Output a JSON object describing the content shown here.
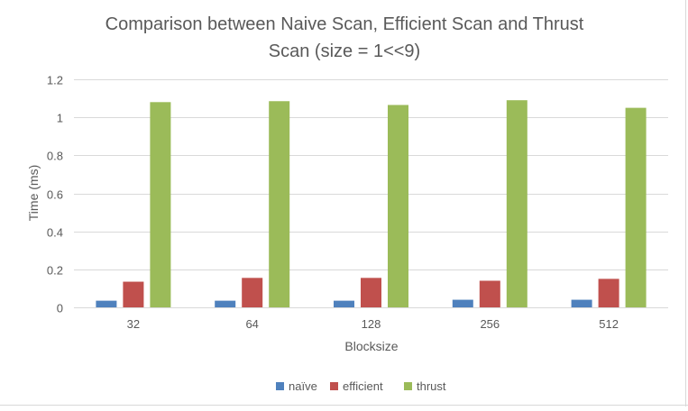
{
  "chart_data": {
    "type": "bar",
    "title_line1": "Comparison between Naive Scan, Efficient Scan and Thrust",
    "title_line2": "Scan (size = 1<<9)",
    "xlabel": "Blocksize",
    "ylabel": "Time (ms)",
    "categories": [
      "32",
      "64",
      "128",
      "256",
      "512"
    ],
    "ylim": [
      0,
      1.2
    ],
    "yticks": [
      "0",
      "0.2",
      "0.4",
      "0.6",
      "0.8",
      "1",
      "1.2"
    ],
    "grid": true,
    "legend_position": "bottom",
    "series": [
      {
        "name": "naïve",
        "color": "#4f81bd",
        "values": [
          0.035,
          0.035,
          0.035,
          0.04,
          0.04
        ]
      },
      {
        "name": "efficient",
        "color": "#c0504d",
        "values": [
          0.135,
          0.155,
          0.155,
          0.14,
          0.15
        ]
      },
      {
        "name": "thrust",
        "color": "#9bbb59",
        "values": [
          1.08,
          1.085,
          1.065,
          1.09,
          1.05
        ]
      }
    ]
  }
}
